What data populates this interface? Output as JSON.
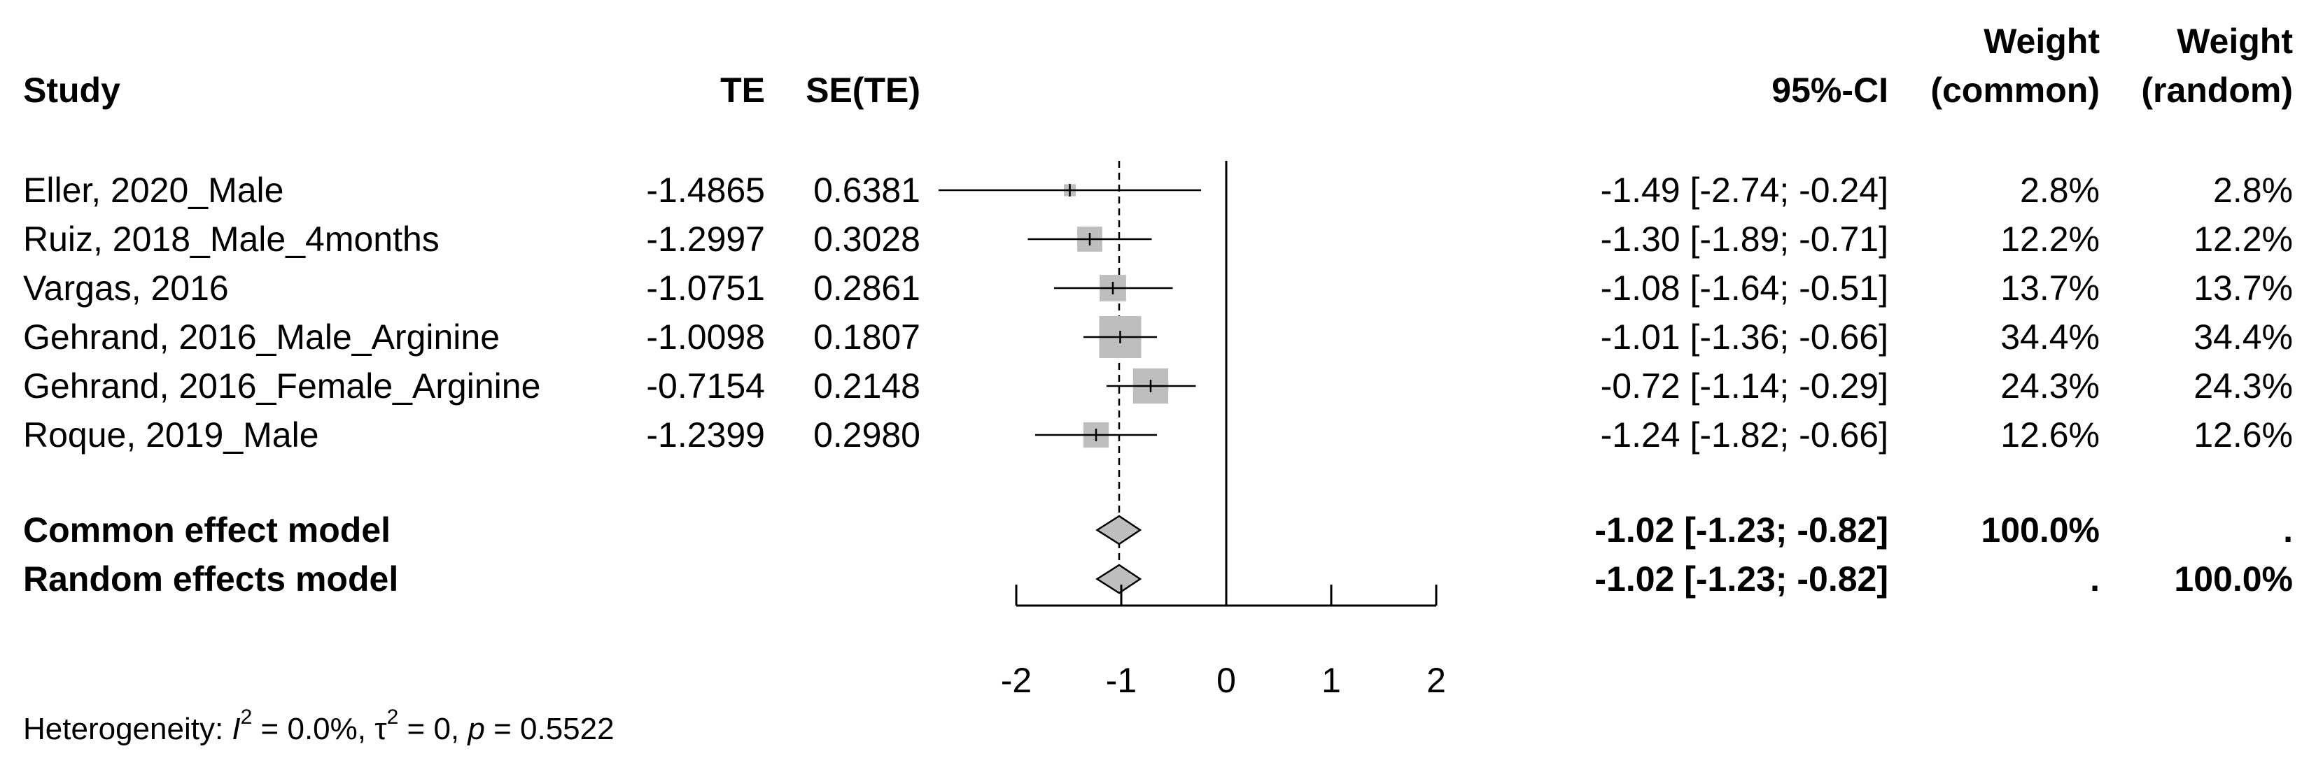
{
  "header": {
    "study": "Study",
    "te": "TE",
    "sete": "SE(TE)",
    "ci": "95%-CI",
    "weight_common_1": "Weight",
    "weight_common_2": "(common)",
    "weight_random_1": "Weight",
    "weight_random_2": "(random)"
  },
  "studies": [
    {
      "study": "Eller, 2020_Male",
      "te": "-1.4865",
      "sete": "0.6381",
      "ci": "-1.49  [-2.74; -0.24]",
      "w_common": "2.8%",
      "w_random": "2.8%"
    },
    {
      "study": "Ruiz, 2018_Male_4months",
      "te": "-1.2997",
      "sete": "0.3028",
      "ci": "-1.30  [-1.89; -0.71]",
      "w_common": "12.2%",
      "w_random": "12.2%"
    },
    {
      "study": "Vargas, 2016",
      "te": "-1.0751",
      "sete": "0.2861",
      "ci": "-1.08  [-1.64; -0.51]",
      "w_common": "13.7%",
      "w_random": "13.7%"
    },
    {
      "study": "Gehrand, 2016_Male_Arginine",
      "te": "-1.0098",
      "sete": "0.1807",
      "ci": "-1.01  [-1.36; -0.66]",
      "w_common": "34.4%",
      "w_random": "34.4%"
    },
    {
      "study": "Gehrand, 2016_Female_Arginine",
      "te": "-0.7154",
      "sete": "0.2148",
      "ci": "-0.72  [-1.14; -0.29]",
      "w_common": "24.3%",
      "w_random": "24.3%"
    },
    {
      "study": "Roque, 2019_Male",
      "te": "-1.2399",
      "sete": "0.2980",
      "ci": "-1.24  [-1.82; -0.66]",
      "w_common": "12.6%",
      "w_random": "12.6%"
    }
  ],
  "models": [
    {
      "label": "Common effect model",
      "ci": "-1.02  [-1.23; -0.82]",
      "w_common": "100.0%",
      "w_random": "."
    },
    {
      "label": "Random effects model",
      "ci": "-1.02  [-1.23; -0.82]",
      "w_common": ".",
      "w_random": "100.0%"
    }
  ],
  "heterogeneity": {
    "prefix": "Heterogeneity: ",
    "i2_symbol": "I",
    "i2_exp": "2",
    "i2_value": " = 0.0%, ",
    "tau_symbol": "τ",
    "tau_exp": "2",
    "tau_value": " = 0, ",
    "p_symbol": "p",
    "p_value": " = 0.5522"
  },
  "chart_data": {
    "type": "forest",
    "xlim": [
      -2,
      2
    ],
    "ticks": [
      -2,
      -1,
      0,
      1,
      2
    ],
    "tick_labels": [
      "-2",
      "-1",
      "0",
      "1",
      "2"
    ],
    "null_value": 0,
    "pooled_reference": -1.02,
    "studies": [
      {
        "name": "Eller, 2020_Male",
        "est": -1.49,
        "lower": -2.74,
        "upper": -0.24,
        "weight": 2.8
      },
      {
        "name": "Ruiz, 2018_Male_4months",
        "est": -1.3,
        "lower": -1.89,
        "upper": -0.71,
        "weight": 12.2
      },
      {
        "name": "Vargas, 2016",
        "est": -1.08,
        "lower": -1.64,
        "upper": -0.51,
        "weight": 13.7
      },
      {
        "name": "Gehrand, 2016_Male_Arginine",
        "est": -1.01,
        "lower": -1.36,
        "upper": -0.66,
        "weight": 34.4
      },
      {
        "name": "Gehrand, 2016_Female_Arginine",
        "est": -0.72,
        "lower": -1.14,
        "upper": -0.29,
        "weight": 24.3
      },
      {
        "name": "Roque, 2019_Male",
        "est": -1.24,
        "lower": -1.82,
        "upper": -0.66,
        "weight": 12.6
      }
    ],
    "pooled": [
      {
        "name": "Common effect model",
        "est": -1.02,
        "lower": -1.23,
        "upper": -0.82
      },
      {
        "name": "Random effects model",
        "est": -1.02,
        "lower": -1.23,
        "upper": -0.82
      }
    ],
    "colors": {
      "box": "#bebebe",
      "diamond": "#bebebe",
      "line": "#000000"
    }
  }
}
